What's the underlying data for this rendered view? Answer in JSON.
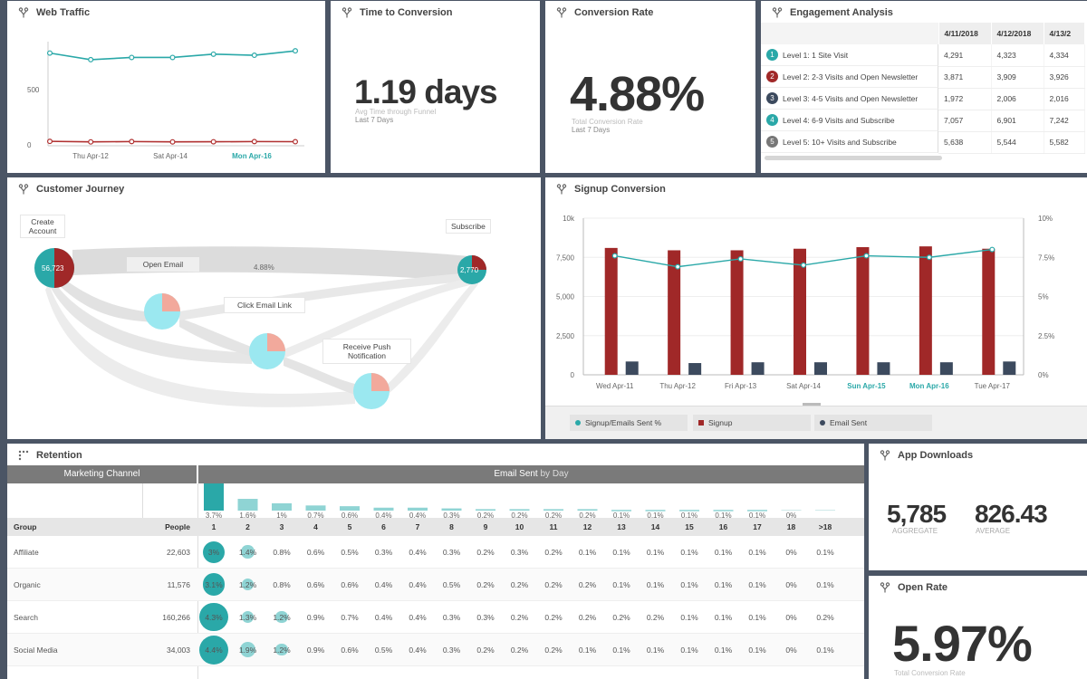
{
  "web_traffic": {
    "title": "Web Traffic",
    "y_ticks": [
      "500",
      "0"
    ],
    "x_ticks": [
      "Thu Apr-12",
      "Sat Apr-14",
      "Mon Apr-16"
    ],
    "chart_data": {
      "type": "line",
      "x": [
        1,
        2,
        3,
        4,
        5,
        6,
        7
      ],
      "series": [
        {
          "values": [
            840,
            780,
            800,
            800,
            830,
            820,
            860
          ],
          "color": "#2aa8a8"
        },
        {
          "values": [
            40,
            35,
            38,
            35,
            36,
            38,
            37
          ],
          "color": "#b03030"
        }
      ]
    }
  },
  "time_to_conversion": {
    "title": "Time to Conversion",
    "value": "1.19 days",
    "label": "Avg Time through Funnel",
    "period": "Last 7 Days"
  },
  "conversion_rate": {
    "title": "Conversion Rate",
    "value": "4.88%",
    "label": "Total Conversion Rate",
    "period": "Last 7 Days"
  },
  "engagement": {
    "title": "Engagement Analysis",
    "columns": [
      "4/11/2018",
      "4/12/2018",
      "4/13/2"
    ],
    "rows": [
      {
        "n": "1",
        "color": "#2aa8a8",
        "label": "Level 1: 1 Site Visit",
        "v": [
          "4,291",
          "4,323",
          "4,334"
        ]
      },
      {
        "n": "2",
        "color": "#a02828",
        "label": "Level 2: 2-3 Visits and Open Newsletter",
        "v": [
          "3,871",
          "3,909",
          "3,926"
        ]
      },
      {
        "n": "3",
        "color": "#3c4a5e",
        "label": "Level 3: 4-5 Visits and Open Newsletter",
        "v": [
          "1,972",
          "2,006",
          "2,016"
        ]
      },
      {
        "n": "4",
        "color": "#2aa8a8",
        "label": "Level 4: 6-9 Visits and Subscribe",
        "v": [
          "7,057",
          "6,901",
          "7,242"
        ]
      },
      {
        "n": "5",
        "color": "#777777",
        "label": "Level 5: 10+ Visits and Subscribe",
        "v": [
          "5,638",
          "5,544",
          "5,582"
        ]
      }
    ]
  },
  "customer_journey": {
    "title": "Customer Journey",
    "create_account": "Create Account",
    "subscribe": "Subscribe",
    "open_email": "Open Email",
    "click_email_link": "Click Email Link",
    "receive_push": "Receive Push Notification",
    "flow_pct": "4.88%",
    "start_value": "56,723",
    "end_value": "2,770"
  },
  "signup_conversion": {
    "title": "Signup Conversion",
    "y_left": [
      "10k",
      "7,500",
      "5,000",
      "2,500",
      "0"
    ],
    "y_right": [
      "10%",
      "7.5%",
      "5%",
      "2.5%",
      "0%"
    ],
    "legend": [
      "Signup/Emails Sent %",
      "Signup",
      "Email Sent"
    ],
    "chart_data": {
      "type": "bar",
      "categories": [
        "Wed Apr-11",
        "Thu Apr-12",
        "Fri Apr-13",
        "Sat Apr-14",
        "Sun Apr-15",
        "Mon Apr-16",
        "Tue Apr-17"
      ],
      "ylim": [
        0,
        10000
      ],
      "series": [
        {
          "name": "Signup",
          "values": [
            8100,
            7950,
            7950,
            8050,
            8150,
            8200,
            8050
          ],
          "color": "#a02828"
        },
        {
          "name": "Email Sent",
          "values": [
            850,
            750,
            800,
            800,
            800,
            800,
            850
          ],
          "color": "#3c4a5e"
        },
        {
          "name": "Signup/Emails Sent %",
          "values": [
            7.6,
            6.9,
            7.4,
            7.0,
            7.6,
            7.5,
            8.0
          ],
          "color": "#2aa8a8",
          "axis": "right",
          "ylim": [
            0,
            10
          ]
        }
      ]
    }
  },
  "retention": {
    "title": "Retention",
    "left_header": "Marketing Channel",
    "right_header": "Email Sent",
    "right_header_suffix": "by Day",
    "col_group": "Group",
    "col_people": "People",
    "day_headers": [
      "1",
      "2",
      "3",
      "4",
      "5",
      "6",
      "7",
      "8",
      "9",
      "10",
      "11",
      "12",
      "13",
      "14",
      "15",
      "16",
      "17",
      "18",
      ">18"
    ],
    "summary_pct": [
      "3.7%",
      "1.6%",
      "1%",
      "0.7%",
      "0.6%",
      "0.4%",
      "0.4%",
      "0.3%",
      "0.2%",
      "0.2%",
      "0.2%",
      "0.2%",
      "0.1%",
      "0.1%",
      "0.1%",
      "0.1%",
      "0.1%",
      "0%",
      ""
    ],
    "summary_values": [
      3.7,
      1.6,
      1,
      0.7,
      0.6,
      0.4,
      0.4,
      0.3,
      0.2,
      0.2,
      0.2,
      0.2,
      0.1,
      0.1,
      0.1,
      0.1,
      0.1,
      0,
      0
    ],
    "rows": [
      {
        "group": "Affiliate",
        "people": "22,603",
        "vals": [
          "3%",
          "1.4%",
          "0.8%",
          "0.6%",
          "0.5%",
          "0.3%",
          "0.4%",
          "0.3%",
          "0.2%",
          "0.3%",
          "0.2%",
          "0.1%",
          "0.1%",
          "0.1%",
          "0.1%",
          "0.1%",
          "0.1%",
          "0%",
          "0.1%"
        ]
      },
      {
        "group": "Organic",
        "people": "11,576",
        "vals": [
          "3.1%",
          "1.2%",
          "0.8%",
          "0.6%",
          "0.6%",
          "0.4%",
          "0.4%",
          "0.5%",
          "0.2%",
          "0.2%",
          "0.2%",
          "0.2%",
          "0.1%",
          "0.1%",
          "0.1%",
          "0.1%",
          "0.1%",
          "0%",
          "0.1%"
        ]
      },
      {
        "group": "Search",
        "people": "160,266",
        "vals": [
          "4.3%",
          "1.3%",
          "1.2%",
          "0.9%",
          "0.7%",
          "0.4%",
          "0.4%",
          "0.3%",
          "0.3%",
          "0.2%",
          "0.2%",
          "0.2%",
          "0.2%",
          "0.2%",
          "0.1%",
          "0.1%",
          "0.1%",
          "0%",
          "0.2%"
        ]
      },
      {
        "group": "Social Media",
        "people": "34,003",
        "vals": [
          "4.4%",
          "1.9%",
          "1.2%",
          "0.9%",
          "0.6%",
          "0.5%",
          "0.4%",
          "0.3%",
          "0.2%",
          "0.2%",
          "0.2%",
          "0.1%",
          "0.1%",
          "0.1%",
          "0.1%",
          "0.1%",
          "0.1%",
          "0%",
          "0.1%"
        ]
      }
    ]
  },
  "app_downloads": {
    "title": "App Downloads",
    "aggregate": "5,785",
    "aggregate_label": "AGGREGATE",
    "average": "826.43",
    "average_label": "AVERAGE"
  },
  "open_rate": {
    "title": "Open Rate",
    "value": "5.97%",
    "label": "Total Conversion Rate"
  }
}
